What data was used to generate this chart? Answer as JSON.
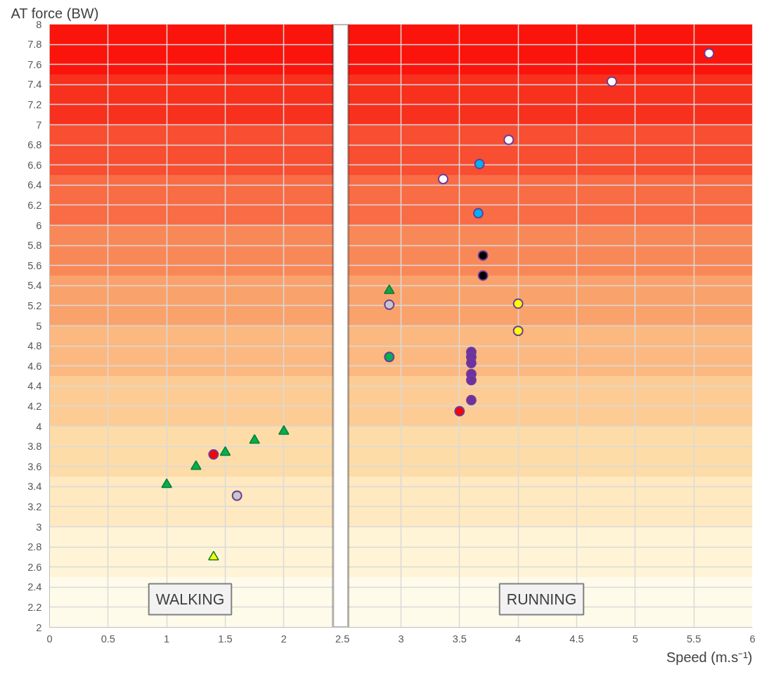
{
  "chart_data": {
    "type": "scatter",
    "xlabel": "Speed (m.s⁻¹)",
    "ylabel": "AT force (BW)",
    "xlim": [
      0,
      6
    ],
    "ylim": [
      2,
      8
    ],
    "xticks": [
      0,
      0.5,
      1,
      1.5,
      2,
      2.5,
      3,
      3.5,
      4,
      4.5,
      5,
      5.5,
      6
    ],
    "yticks": [
      2,
      2.2,
      2.4,
      2.6,
      2.8,
      3,
      3.2,
      3.4,
      3.6,
      3.8,
      4,
      4.2,
      4.4,
      4.6,
      4.8,
      5,
      5.2,
      5.4,
      5.6,
      5.8,
      6,
      6.2,
      6.4,
      6.6,
      6.8,
      7,
      7.2,
      7.4,
      7.6,
      7.8,
      8
    ],
    "grid": true,
    "series": [
      {
        "color": "#00b050",
        "marker": "triangle",
        "x": [
          1,
          1.25,
          1.5,
          1.75,
          2
        ],
        "values": [
          3.42,
          3.6,
          3.74,
          3.86,
          3.95
        ]
      },
      {
        "color": "#ff0000",
        "marker": "circle",
        "x": [
          1.4,
          3.5
        ],
        "values": [
          3.72,
          4.15
        ]
      },
      {
        "color": "#c8c8c8",
        "marker": "circle",
        "x": [
          1.6,
          2.9
        ],
        "values": [
          3.31,
          5.21
        ]
      },
      {
        "color": "#ffff00",
        "marker": "triangle",
        "x": [
          1.4
        ],
        "values": [
          2.7
        ]
      },
      {
        "color": "#00b050",
        "marker": "circle",
        "x": [
          2.9
        ],
        "values": [
          4.69
        ]
      },
      {
        "color": "#1a9e50",
        "marker": "triangle",
        "x": [
          2.9
        ],
        "values": [
          5.35
        ]
      },
      {
        "color": "#ffffff",
        "marker": "circle",
        "x": [
          3.36,
          3.92,
          4.8,
          5.63
        ],
        "values": [
          6.46,
          6.85,
          7.43,
          7.71
        ]
      },
      {
        "color": "#00b0f0",
        "marker": "circle",
        "x": [
          3.67,
          3.66
        ],
        "values": [
          6.61,
          6.12
        ]
      },
      {
        "color": "#000000",
        "marker": "circle",
        "x": [
          3.7,
          3.7
        ],
        "values": [
          5.7,
          5.5
        ]
      },
      {
        "color": "#ffff00",
        "marker": "circle",
        "x": [
          4,
          4
        ],
        "values": [
          5.22,
          4.95
        ]
      },
      {
        "color": "#7030a0",
        "marker": "circle",
        "x": [
          3.6,
          3.6,
          3.6,
          3.6,
          3.6,
          3.6
        ],
        "values": [
          4.74,
          4.69,
          4.63,
          4.52,
          4.46,
          4.26
        ]
      }
    ],
    "bands": [
      {
        "axis": "y",
        "from": 2,
        "to": 2.5,
        "color": "#fffbea"
      },
      {
        "axis": "y",
        "from": 2.5,
        "to": 3,
        "color": "#fff4d6"
      },
      {
        "axis": "y",
        "from": 3,
        "to": 3.5,
        "color": "#fee9c0"
      },
      {
        "axis": "y",
        "from": 3.5,
        "to": 4,
        "color": "#fddca8"
      },
      {
        "axis": "y",
        "from": 4,
        "to": 4.5,
        "color": "#fccc94"
      },
      {
        "axis": "y",
        "from": 4.5,
        "to": 5,
        "color": "#fbb880"
      },
      {
        "axis": "y",
        "from": 5,
        "to": 5.5,
        "color": "#faa26c"
      },
      {
        "axis": "y",
        "from": 5.5,
        "to": 6,
        "color": "#f98858"
      },
      {
        "axis": "y",
        "from": 6,
        "to": 6.5,
        "color": "#f86c46"
      },
      {
        "axis": "y",
        "from": 6.5,
        "to": 7,
        "color": "#f84e32"
      },
      {
        "axis": "y",
        "from": 7,
        "to": 7.5,
        "color": "#f8301e"
      },
      {
        "axis": "y",
        "from": 7.5,
        "to": 8,
        "color": "#fa140c"
      },
      {
        "axis": "x",
        "from": 2.42,
        "to": 2.55,
        "color": "#ffffff"
      }
    ],
    "annotations": [
      "WALKING",
      "RUNNING"
    ]
  }
}
